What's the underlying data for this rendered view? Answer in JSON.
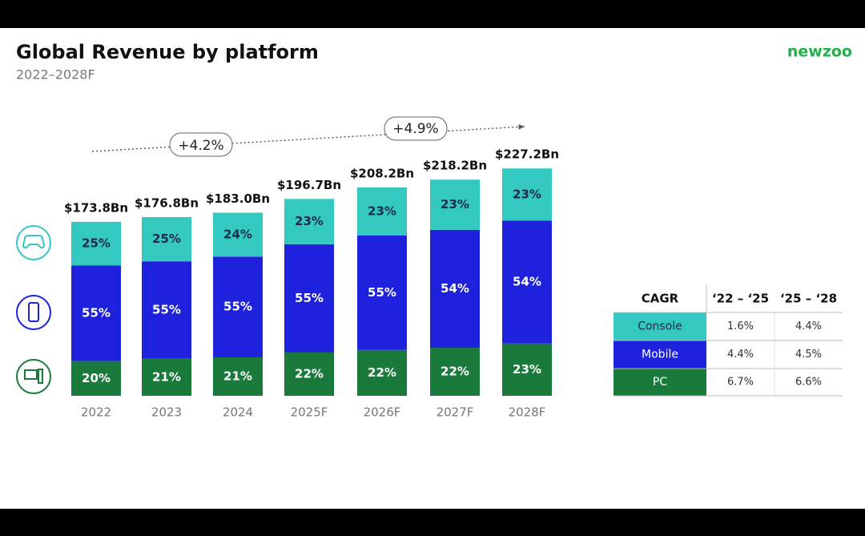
{
  "chart_data": {
    "type": "stacked-bar",
    "title": "Global Revenue by platform",
    "subtitle": "2022–2028F",
    "logo": "newzoo",
    "categories": [
      "2022",
      "2023",
      "2024",
      "2025F",
      "2026F",
      "2027F",
      "2028F"
    ],
    "totals": {
      "values": [
        173.8,
        176.8,
        183.0,
        196.7,
        208.2,
        218.2,
        227.2
      ],
      "value_labels": [
        "$173.8Bn",
        "$176.8Bn",
        "$183.0Bn",
        "$196.7Bn",
        "$208.2Bn",
        "$218.2Bn",
        "$227.2Bn"
      ]
    },
    "series": [
      {
        "name": "Console",
        "color": "#33c9c0",
        "text_color": "#1d2a4a",
        "values": [
          25,
          25,
          24,
          23,
          23,
          23,
          23
        ],
        "value_labels": [
          "25%",
          "25%",
          "24%",
          "23%",
          "23%",
          "23%",
          "23%"
        ]
      },
      {
        "name": "Mobile",
        "color": "#1e22dc",
        "text_color": "#ffffff",
        "values": [
          55,
          55,
          55,
          55,
          55,
          54,
          54
        ],
        "value_labels": [
          "55%",
          "55%",
          "55%",
          "55%",
          "55%",
          "54%",
          "54%"
        ]
      },
      {
        "name": "PC",
        "color": "#1a7a3c",
        "text_color": "#ffffff",
        "values": [
          20,
          21,
          21,
          22,
          22,
          22,
          23
        ],
        "value_labels": [
          "20%",
          "21%",
          "21%",
          "22%",
          "22%",
          "22%",
          "23%"
        ]
      }
    ],
    "annotations": [
      "+4.2%",
      "+4.9%"
    ],
    "cagr_table": {
      "header": [
        "CAGR",
        "‘22 – ‘25",
        "‘25 – ‘28"
      ],
      "rows": [
        [
          "1.6%",
          "4.4%"
        ],
        [
          "4.4%",
          "4.5%"
        ],
        [
          "6.7%",
          "6.6%"
        ]
      ]
    }
  }
}
